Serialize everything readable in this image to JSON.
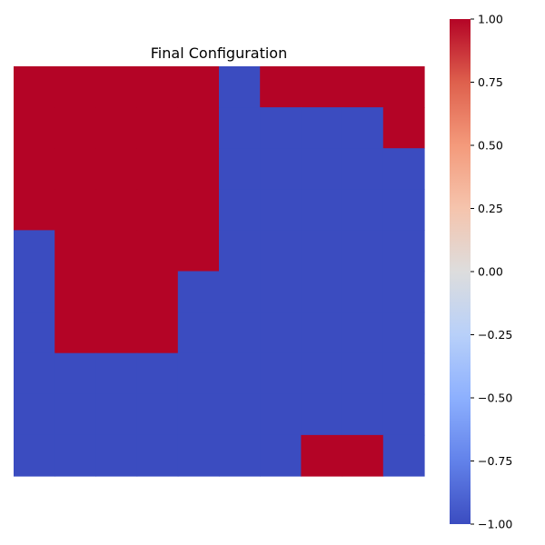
{
  "chart_data": {
    "type": "heatmap",
    "title": "Final Configuration",
    "xlabel": "",
    "ylabel": "",
    "grid": false,
    "show_axes": false,
    "colormap": "coolwarm",
    "color_low": "#3b4cc0",
    "color_high": "#b40426",
    "vmin": -1,
    "vmax": 1,
    "rows": 10,
    "cols": 10,
    "values": [
      [
        1,
        1,
        1,
        1,
        1,
        -1,
        1,
        1,
        1,
        1
      ],
      [
        1,
        1,
        1,
        1,
        1,
        -1,
        -1,
        -1,
        -1,
        1
      ],
      [
        1,
        1,
        1,
        1,
        1,
        -1,
        -1,
        -1,
        -1,
        -1
      ],
      [
        1,
        1,
        1,
        1,
        1,
        -1,
        -1,
        -1,
        -1,
        -1
      ],
      [
        -1,
        1,
        1,
        1,
        1,
        -1,
        -1,
        -1,
        -1,
        -1
      ],
      [
        -1,
        1,
        1,
        1,
        -1,
        -1,
        -1,
        -1,
        -1,
        -1
      ],
      [
        -1,
        1,
        1,
        1,
        -1,
        -1,
        -1,
        -1,
        -1,
        -1
      ],
      [
        -1,
        -1,
        -1,
        -1,
        -1,
        -1,
        -1,
        -1,
        -1,
        -1
      ],
      [
        -1,
        -1,
        -1,
        -1,
        -1,
        -1,
        -1,
        -1,
        -1,
        -1
      ],
      [
        -1,
        -1,
        -1,
        -1,
        -1,
        -1,
        -1,
        1,
        1,
        -1
      ]
    ],
    "colorbar": {
      "ticks": [
        1.0,
        0.75,
        0.5,
        0.25,
        0.0,
        -0.25,
        -0.5,
        -0.75,
        -1.0
      ],
      "tick_labels": [
        "1.00",
        "0.75",
        "0.50",
        "0.25",
        "0.00",
        "−0.25",
        "−0.50",
        "−0.75",
        "−1.00"
      ]
    }
  }
}
